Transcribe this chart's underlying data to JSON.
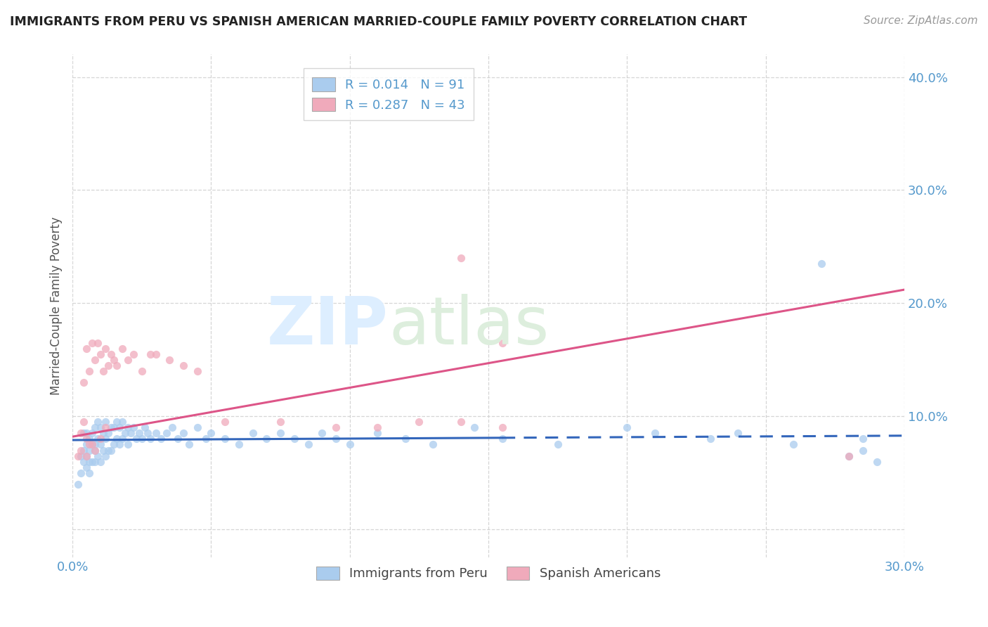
{
  "title": "IMMIGRANTS FROM PERU VS SPANISH AMERICAN MARRIED-COUPLE FAMILY POVERTY CORRELATION CHART",
  "source": "Source: ZipAtlas.com",
  "ylabel": "Married-Couple Family Poverty",
  "legend_label_1": "Immigrants from Peru",
  "legend_label_2": "Spanish Americans",
  "R1": 0.014,
  "N1": 91,
  "R2": 0.287,
  "N2": 43,
  "color1": "#aaccee",
  "color2": "#f0aabb",
  "line_color1": "#3366bb",
  "line_color2": "#dd5588",
  "axis_color": "#5599cc",
  "xlim": [
    0.0,
    0.3
  ],
  "ylim": [
    -0.025,
    0.42
  ],
  "xticks": [
    0.0,
    0.05,
    0.1,
    0.15,
    0.2,
    0.25,
    0.3
  ],
  "yticks": [
    0.0,
    0.1,
    0.2,
    0.3,
    0.4
  ],
  "grid_color": "#cccccc",
  "background": "#ffffff",
  "line1_x": [
    0.0,
    0.155
  ],
  "line1_xdash": [
    0.155,
    0.3
  ],
  "line1_y_start": 0.079,
  "line1_y_end": 0.081,
  "line2_x": [
    0.0,
    0.3
  ],
  "line2_y_start": 0.082,
  "line2_y_end": 0.212,
  "scatter1_x": [
    0.002,
    0.003,
    0.003,
    0.004,
    0.004,
    0.004,
    0.005,
    0.005,
    0.005,
    0.005,
    0.006,
    0.006,
    0.006,
    0.006,
    0.007,
    0.007,
    0.007,
    0.008,
    0.008,
    0.008,
    0.008,
    0.009,
    0.009,
    0.009,
    0.01,
    0.01,
    0.01,
    0.011,
    0.011,
    0.012,
    0.012,
    0.012,
    0.013,
    0.013,
    0.014,
    0.014,
    0.015,
    0.015,
    0.016,
    0.016,
    0.017,
    0.017,
    0.018,
    0.018,
    0.019,
    0.02,
    0.02,
    0.021,
    0.022,
    0.023,
    0.024,
    0.025,
    0.026,
    0.027,
    0.028,
    0.03,
    0.032,
    0.034,
    0.036,
    0.038,
    0.04,
    0.042,
    0.045,
    0.048,
    0.05,
    0.055,
    0.06,
    0.065,
    0.07,
    0.075,
    0.08,
    0.085,
    0.09,
    0.095,
    0.1,
    0.11,
    0.12,
    0.13,
    0.145,
    0.155,
    0.175,
    0.2,
    0.21,
    0.23,
    0.24,
    0.26,
    0.27,
    0.28,
    0.285,
    0.285,
    0.29
  ],
  "scatter1_y": [
    0.04,
    0.05,
    0.065,
    0.06,
    0.07,
    0.085,
    0.055,
    0.065,
    0.075,
    0.085,
    0.05,
    0.06,
    0.07,
    0.08,
    0.06,
    0.075,
    0.085,
    0.06,
    0.07,
    0.075,
    0.09,
    0.065,
    0.08,
    0.095,
    0.06,
    0.075,
    0.09,
    0.07,
    0.085,
    0.065,
    0.08,
    0.095,
    0.07,
    0.085,
    0.07,
    0.09,
    0.075,
    0.09,
    0.08,
    0.095,
    0.075,
    0.09,
    0.08,
    0.095,
    0.085,
    0.075,
    0.09,
    0.085,
    0.09,
    0.08,
    0.085,
    0.08,
    0.09,
    0.085,
    0.08,
    0.085,
    0.08,
    0.085,
    0.09,
    0.08,
    0.085,
    0.075,
    0.09,
    0.08,
    0.085,
    0.08,
    0.075,
    0.085,
    0.08,
    0.085,
    0.08,
    0.075,
    0.085,
    0.08,
    0.075,
    0.085,
    0.08,
    0.075,
    0.09,
    0.08,
    0.075,
    0.09,
    0.085,
    0.08,
    0.085,
    0.075,
    0.235,
    0.065,
    0.07,
    0.08,
    0.06
  ],
  "scatter2_x": [
    0.002,
    0.003,
    0.003,
    0.004,
    0.004,
    0.005,
    0.005,
    0.005,
    0.006,
    0.006,
    0.007,
    0.007,
    0.008,
    0.008,
    0.009,
    0.01,
    0.01,
    0.011,
    0.012,
    0.012,
    0.013,
    0.014,
    0.015,
    0.016,
    0.018,
    0.02,
    0.022,
    0.025,
    0.028,
    0.03,
    0.035,
    0.04,
    0.045,
    0.055,
    0.075,
    0.095,
    0.11,
    0.125,
    0.14,
    0.155,
    0.14,
    0.155,
    0.28
  ],
  "scatter2_y": [
    0.065,
    0.07,
    0.085,
    0.095,
    0.13,
    0.065,
    0.08,
    0.16,
    0.075,
    0.14,
    0.075,
    0.165,
    0.07,
    0.15,
    0.165,
    0.08,
    0.155,
    0.14,
    0.09,
    0.16,
    0.145,
    0.155,
    0.15,
    0.145,
    0.16,
    0.15,
    0.155,
    0.14,
    0.155,
    0.155,
    0.15,
    0.145,
    0.14,
    0.095,
    0.095,
    0.09,
    0.09,
    0.095,
    0.095,
    0.09,
    0.24,
    0.165,
    0.065
  ]
}
